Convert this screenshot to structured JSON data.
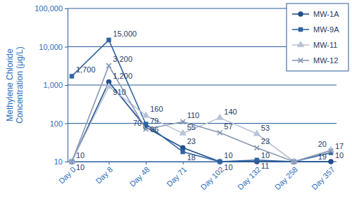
{
  "chart_data": {
    "type": "line",
    "y_label": "Methylene Chloride Concentration (μg/L)",
    "categories": [
      "Day 0",
      "Day 8",
      "Day 48",
      "Day 71",
      "Day 102",
      "Day 132",
      "Day 258",
      "Day 357"
    ],
    "log": "y",
    "grid": true,
    "legend": "top-right",
    "data_labels": true,
    "ylim": [
      10,
      100000
    ],
    "yticks": [
      10,
      100,
      {
        "value": 1000,
        "label": "1,000"
      },
      {
        "value": 10000,
        "label": "10,000"
      },
      {
        "value": 100000,
        "label": "100,000"
      }
    ],
    "series": [
      {
        "name": "MW-1A",
        "color": "#1f4e8c",
        "marker": "circle",
        "values": [
          10,
          1200,
          79,
          23,
          10,
          10,
          10,
          10
        ],
        "value_labels": [
          "10",
          "1,200",
          "79",
          "23",
          "10",
          "10",
          null,
          "10"
        ]
      },
      {
        "name": "MW-9A",
        "color": "#2f64a3",
        "marker": "square",
        "values": [
          1700,
          15000,
          96,
          18,
          10,
          11,
          10,
          17
        ],
        "value_labels": [
          "1,700",
          "15,000",
          "96",
          "18",
          "10",
          "11",
          null,
          "17"
        ]
      },
      {
        "name": "MW-11",
        "color": "#b7c3d6",
        "marker": "triangle",
        "values": [
          10,
          910,
          160,
          55,
          140,
          53,
          10,
          20
        ],
        "value_labels": [
          null,
          "910",
          "160",
          "55",
          "140",
          "53",
          null,
          "20"
        ]
      },
      {
        "name": "MW-12",
        "color": "#8797b3",
        "marker": "x",
        "values": [
          10,
          3200,
          70,
          110,
          57,
          23,
          10,
          19
        ],
        "value_labels": [
          "10",
          "3,200",
          "70",
          "110",
          "57",
          "23",
          null,
          "19"
        ]
      }
    ]
  }
}
